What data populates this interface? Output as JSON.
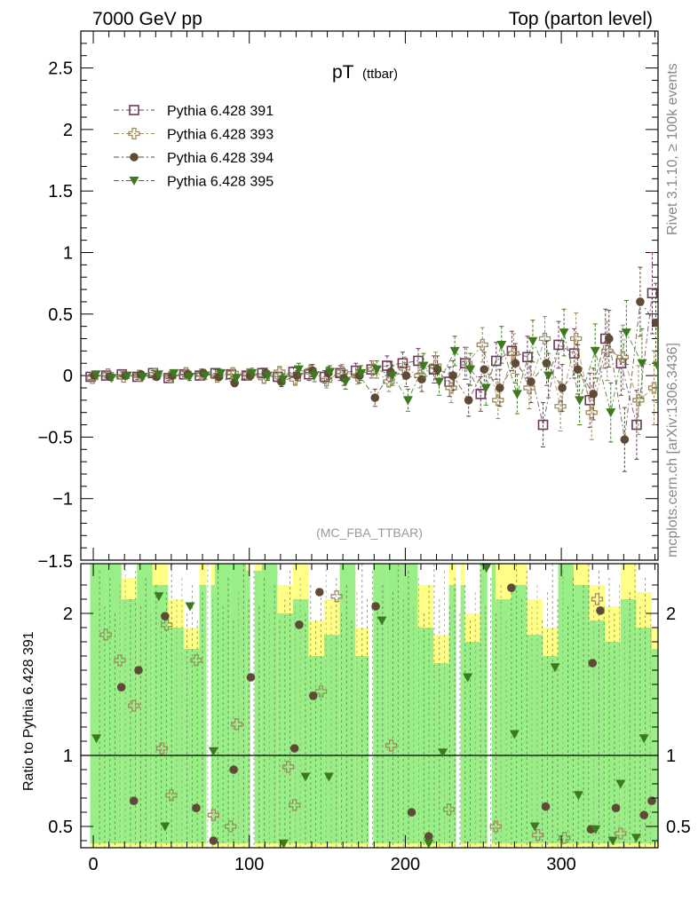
{
  "header": {
    "left": "7000 GeV pp",
    "right": "Top (parton level)"
  },
  "side_labels": {
    "top": "Rivet 3.1.10, ≥ 100k events",
    "bottom": "mcplots.cern.ch [arXiv:1306.3436]"
  },
  "chart_data": [
    {
      "type": "scatter",
      "panel": "main",
      "title": "pT",
      "subtitle": "(ttbar)",
      "annotation": "(MC_FBA_TTBAR)",
      "xlim": [
        -8,
        362
      ],
      "ylim": [
        -1.5,
        2.8
      ],
      "yticks": [
        -1,
        -0.5,
        0,
        0.5,
        1,
        1.5,
        2,
        2.5
      ],
      "ytick_labels": [
        "−1",
        "−0.5",
        "0",
        "0.5",
        "1",
        "1.5",
        "2",
        "2.5"
      ],
      "bottom_clipped_label": "−1.5",
      "legend_position": "top-left",
      "x": [
        0,
        10,
        20,
        30,
        40,
        50,
        60,
        70,
        80,
        90,
        100,
        110,
        120,
        130,
        140,
        150,
        160,
        170,
        180,
        190,
        200,
        210,
        220,
        230,
        240,
        250,
        260,
        270,
        280,
        290,
        300,
        310,
        320,
        330,
        340,
        350,
        360
      ],
      "series": [
        {
          "name": "Pythia 6.428 391",
          "marker": "open-square",
          "color": "#6b3a5b",
          "values": [
            -0.01,
            0.0,
            0.01,
            -0.01,
            0.02,
            -0.02,
            0.01,
            0.0,
            0.02,
            0.01,
            0.0,
            0.02,
            -0.01,
            0.03,
            0.01,
            -0.01,
            0.02,
            0.04,
            0.05,
            0.08,
            0.1,
            0.12,
            0.05,
            -0.05,
            0.1,
            -0.15,
            0.12,
            0.2,
            0.15,
            -0.4,
            0.25,
            0.18,
            -0.2,
            0.3,
            0.1,
            -0.4,
            0.67
          ],
          "errors": [
            0.02,
            0.02,
            0.02,
            0.02,
            0.02,
            0.02,
            0.02,
            0.03,
            0.03,
            0.03,
            0.03,
            0.04,
            0.04,
            0.04,
            0.05,
            0.05,
            0.06,
            0.06,
            0.07,
            0.08,
            0.09,
            0.1,
            0.11,
            0.12,
            0.13,
            0.14,
            0.15,
            0.16,
            0.17,
            0.18,
            0.19,
            0.2,
            0.22,
            0.24,
            0.26,
            0.28,
            0.33
          ]
        },
        {
          "name": "Pythia 6.428 393",
          "marker": "open-cross",
          "color": "#9c8b5e",
          "values": [
            -0.02,
            0.01,
            -0.01,
            0.0,
            0.01,
            -0.01,
            0.02,
            0.01,
            -0.01,
            0.02,
            0.01,
            -0.02,
            0.03,
            -0.03,
            0.04,
            -0.04,
            0.03,
            0.0,
            0.05,
            -0.05,
            0.06,
            0.0,
            0.08,
            -0.1,
            0.1,
            0.25,
            -0.2,
            0.18,
            -0.1,
            0.3,
            -0.25,
            0.3,
            -0.3,
            0.2,
            0.15,
            -0.2,
            -0.1
          ],
          "errors": [
            0.02,
            0.02,
            0.02,
            0.02,
            0.02,
            0.02,
            0.03,
            0.03,
            0.03,
            0.03,
            0.04,
            0.04,
            0.04,
            0.05,
            0.05,
            0.06,
            0.06,
            0.07,
            0.07,
            0.08,
            0.09,
            0.1,
            0.11,
            0.12,
            0.13,
            0.14,
            0.15,
            0.16,
            0.17,
            0.18,
            0.2,
            0.21,
            0.22,
            0.24,
            0.26,
            0.28,
            0.3
          ]
        },
        {
          "name": "Pythia 6.428 394",
          "marker": "filled-circle",
          "color": "#5e4a36",
          "values": [
            0.0,
            -0.01,
            0.0,
            0.01,
            -0.01,
            0.0,
            0.01,
            0.02,
            -0.01,
            -0.06,
            0.0,
            0.02,
            -0.05,
            0.0,
            0.04,
            0.02,
            -0.02,
            0.0,
            -0.18,
            0.03,
            0.0,
            -0.03,
            0.05,
            0.0,
            -0.2,
            0.05,
            -0.1,
            0.1,
            -0.05,
            0.1,
            -0.1,
            0.05,
            -0.15,
            0.3,
            -0.52,
            0.6,
            0.43
          ],
          "errors": [
            0.02,
            0.02,
            0.02,
            0.02,
            0.02,
            0.02,
            0.02,
            0.03,
            0.03,
            0.03,
            0.03,
            0.04,
            0.04,
            0.04,
            0.05,
            0.05,
            0.06,
            0.06,
            0.07,
            0.08,
            0.09,
            0.1,
            0.11,
            0.12,
            0.13,
            0.14,
            0.15,
            0.16,
            0.17,
            0.18,
            0.19,
            0.2,
            0.21,
            0.23,
            0.26,
            0.28,
            0.32
          ]
        },
        {
          "name": "Pythia 6.428 395",
          "marker": "filled-triangle-down",
          "color": "#3d7a1f",
          "values": [
            0.01,
            -0.02,
            0.0,
            -0.01,
            0.01,
            0.02,
            -0.01,
            0.0,
            0.02,
            -0.02,
            0.02,
            0.0,
            -0.03,
            0.05,
            0.0,
            0.03,
            -0.05,
            0.02,
            0.05,
            0.0,
            -0.2,
            0.08,
            -0.05,
            0.2,
            0.05,
            -0.1,
            0.25,
            -0.15,
            0.28,
            0.0,
            0.35,
            -0.2,
            0.2,
            -0.3,
            0.35,
            0.1,
            0.08
          ],
          "errors": [
            0.02,
            0.02,
            0.02,
            0.02,
            0.02,
            0.02,
            0.03,
            0.03,
            0.03,
            0.03,
            0.04,
            0.04,
            0.04,
            0.05,
            0.05,
            0.05,
            0.06,
            0.06,
            0.07,
            0.08,
            0.09,
            0.1,
            0.11,
            0.12,
            0.13,
            0.14,
            0.15,
            0.16,
            0.17,
            0.18,
            0.19,
            0.2,
            0.22,
            0.24,
            0.26,
            0.28,
            0.3
          ]
        }
      ]
    },
    {
      "type": "scatter",
      "panel": "ratio",
      "ylabel": "Ratio to Pythia 6.428 391",
      "xlim": [
        -8,
        362
      ],
      "ylim": [
        0.35,
        2.35
      ],
      "yticks": [
        0.5,
        1,
        2
      ],
      "ytick_labels": [
        "0.5",
        "1",
        "2"
      ],
      "xticks": [
        0,
        100,
        200,
        300
      ],
      "xtick_labels": [
        "0",
        "100",
        "200",
        "300"
      ],
      "reference_line": 1,
      "band_colors": {
        "inner": "#99ee88",
        "outer": "#ffff88"
      },
      "points": [
        {
          "series": "Pythia 6.428 393",
          "x": [
            8,
            17,
            26,
            44,
            47,
            50,
            66,
            77,
            88,
            92,
            125,
            129,
            146,
            156,
            191,
            228,
            258,
            285,
            302,
            323,
            338
          ],
          "y": [
            1.85,
            1.67,
            1.35,
            1.05,
            1.92,
            0.72,
            1.67,
            0.58,
            0.5,
            1.22,
            0.92,
            0.65,
            1.45,
            2.12,
            1.07,
            0.62,
            0.5,
            0.44,
            0.42,
            2.1,
            0.45
          ]
        },
        {
          "series": "Pythia 6.428 394",
          "x": [
            18,
            26,
            29,
            46,
            66,
            77,
            90,
            101,
            129,
            132,
            141,
            145,
            181,
            204,
            215,
            268,
            290,
            319,
            320,
            325,
            335,
            353,
            358
          ],
          "y": [
            1.48,
            0.68,
            1.6,
            1.98,
            0.63,
            0.4,
            0.9,
            1.55,
            1.05,
            1.92,
            1.42,
            2.15,
            2.05,
            0.6,
            0.43,
            2.18,
            0.64,
            0.48,
            1.65,
            2.02,
            0.63,
            0.58,
            0.68
          ]
        },
        {
          "series": "Pythia 6.428 395",
          "x": [
            2,
            42,
            46,
            62,
            77,
            122,
            136,
            151,
            185,
            215,
            224,
            240,
            252,
            270,
            283,
            296,
            311,
            322,
            333,
            338,
            348,
            353
          ],
          "y": [
            1.12,
            2.12,
            0.5,
            2.05,
            1.03,
            0.38,
            0.85,
            0.85,
            1.95,
            0.38,
            1.02,
            1.55,
            2.32,
            1.15,
            0.5,
            1.62,
            0.72,
            0.48,
            0.4,
            0.8,
            0.42,
            1.12
          ]
        }
      ]
    }
  ]
}
